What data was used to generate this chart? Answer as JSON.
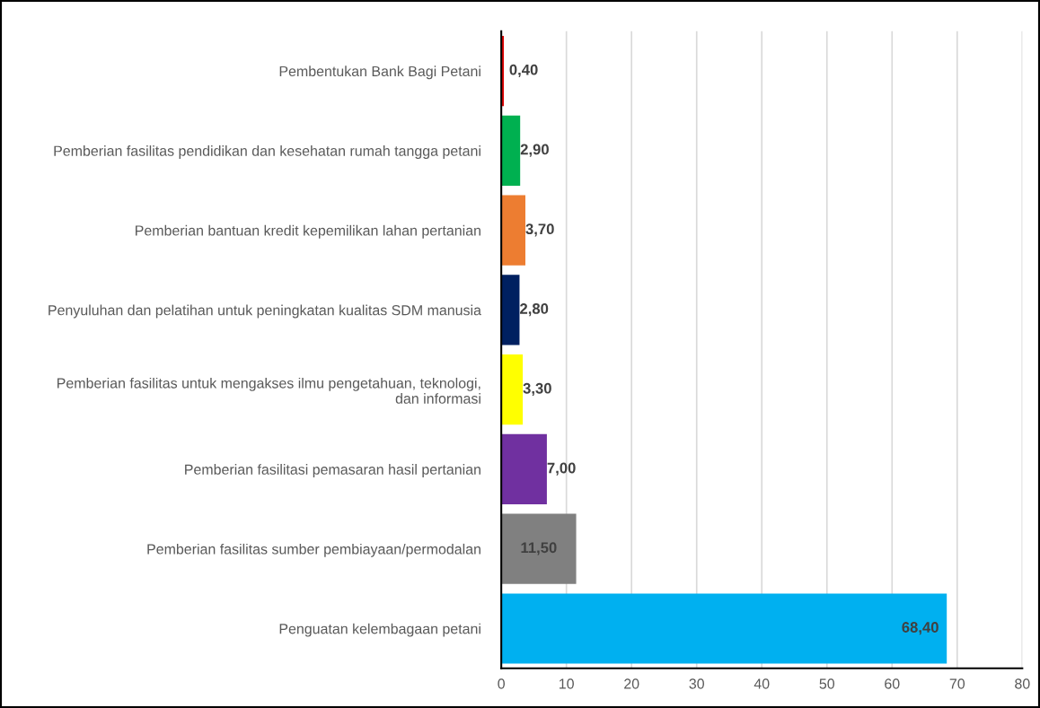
{
  "chart_data": {
    "type": "bar",
    "orientation": "horizontal",
    "categories": [
      "Pembentukan Bank Bagi Petani",
      "Pemberian fasilitas pendidikan dan kesehatan rumah tangga petani",
      "Pemberian bantuan kredit kepemilikan lahan pertanian",
      "Penyuluhan dan pelatihan untuk peningkatan kualitas SDM manusia",
      "Pemberian fasilitas untuk mengakses ilmu pengetahuan, teknologi,\ndan informasi",
      "Pemberian fasilitasi pemasaran hasil pertanian",
      "Pemberian fasilitas sumber pembiayaan/permodalan",
      "Penguatan kelembagaan petani"
    ],
    "values": [
      0.4,
      2.9,
      3.7,
      2.8,
      3.3,
      7.0,
      11.5,
      68.4
    ],
    "value_labels": [
      "0,40",
      "2,90",
      "3,70",
      "2,80",
      "3,30",
      "7,00",
      "11,50",
      "68,40"
    ],
    "colors": [
      "#e00000",
      "#00b050",
      "#ed7d31",
      "#002060",
      "#ffff00",
      "#7030a0",
      "#808080",
      "#00b0f0"
    ],
    "xlim": [
      0,
      80
    ],
    "xticks": [
      0,
      10,
      20,
      30,
      40,
      50,
      60,
      70,
      80
    ],
    "grid": "x"
  }
}
